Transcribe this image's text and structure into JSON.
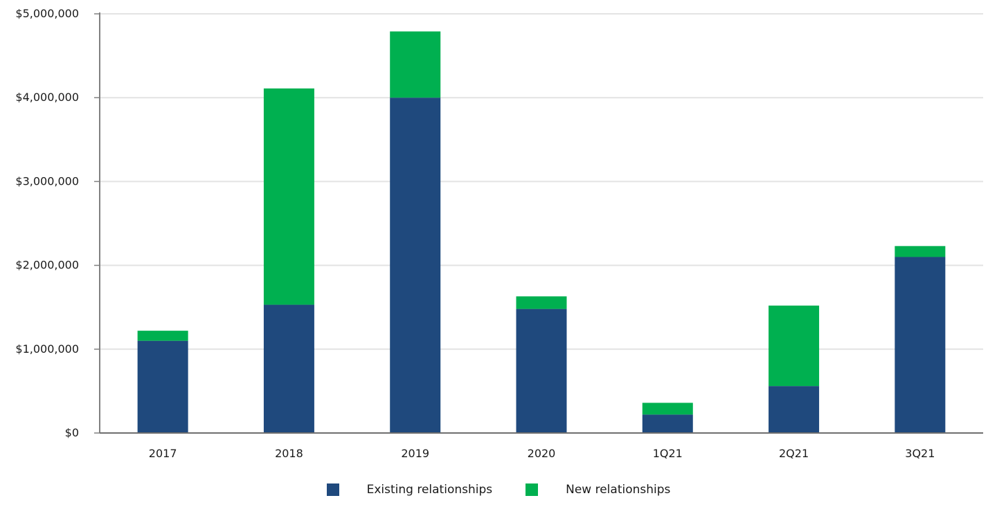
{
  "chart_data": {
    "type": "bar",
    "stacked": true,
    "categories": [
      "2017",
      "2018",
      "2019",
      "2020",
      "1Q21",
      "2Q21",
      "3Q21"
    ],
    "series": [
      {
        "name": "Existing relationships",
        "color": "#1f497d",
        "values": [
          1100000,
          1530000,
          4000000,
          1480000,
          220000,
          560000,
          2100000
        ]
      },
      {
        "name": "New relationships",
        "color": "#00b050",
        "values": [
          120000,
          2580000,
          790000,
          150000,
          140000,
          960000,
          130000
        ]
      }
    ],
    "y_ticks": [
      "$0",
      "$1,000,000",
      "$2,000,000",
      "$3,000,000",
      "$4,000,000",
      "$5,000,000"
    ],
    "ylim": [
      0,
      5000000
    ],
    "grid": true,
    "legend_position": "bottom"
  }
}
